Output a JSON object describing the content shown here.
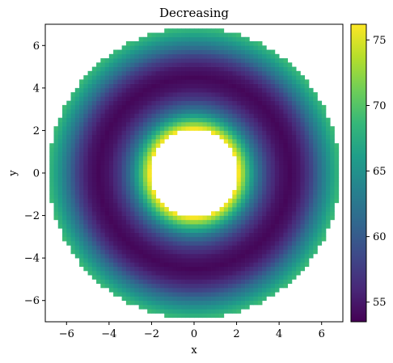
{
  "chart_data": {
    "type": "heatmap",
    "title": "Decreasing",
    "xlabel": "x",
    "ylabel": "y",
    "xlim": [
      -7,
      7
    ],
    "ylim": [
      -7,
      7
    ],
    "x_ticks": [
      -6,
      -4,
      -2,
      0,
      2,
      4,
      6
    ],
    "y_ticks": [
      -6,
      -4,
      -2,
      0,
      2,
      4,
      6
    ],
    "x_tick_labels": [
      "−6",
      "−4",
      "−2",
      "0",
      "2",
      "4",
      "6"
    ],
    "y_tick_labels": [
      "−6",
      "−4",
      "−2",
      "0",
      "2",
      "4",
      "6"
    ],
    "grid": false,
    "colormap": "viridis",
    "colorbar": {
      "range": [
        53.5,
        76.2
      ],
      "ticks": [
        55,
        60,
        65,
        70,
        75
      ],
      "tick_labels": [
        "55",
        "60",
        "65",
        "70",
        "75"
      ]
    },
    "field": {
      "grid_resolution": 0.2,
      "inner_radius": 2.1,
      "outer_radius": 6.85,
      "minimum_value_radius": 4.5,
      "samples": [
        {
          "r": 2.1,
          "value": 76.0
        },
        {
          "r": 2.5,
          "value": 69.0
        },
        {
          "r": 3.0,
          "value": 62.0
        },
        {
          "r": 3.5,
          "value": 57.5
        },
        {
          "r": 4.0,
          "value": 54.8
        },
        {
          "r": 4.5,
          "value": 53.8
        },
        {
          "r": 5.0,
          "value": 55.0
        },
        {
          "r": 5.5,
          "value": 58.0
        },
        {
          "r": 6.0,
          "value": 62.5
        },
        {
          "r": 6.5,
          "value": 66.5
        },
        {
          "r": 6.85,
          "value": 69.0
        }
      ]
    }
  },
  "colors": {
    "viridis_stops": [
      "#440154",
      "#482878",
      "#3e4989",
      "#31688e",
      "#26828e",
      "#1f9e89",
      "#35b779",
      "#6ece58",
      "#b5de2b",
      "#fde725"
    ],
    "axis": "#000000",
    "background": "#ffffff"
  }
}
